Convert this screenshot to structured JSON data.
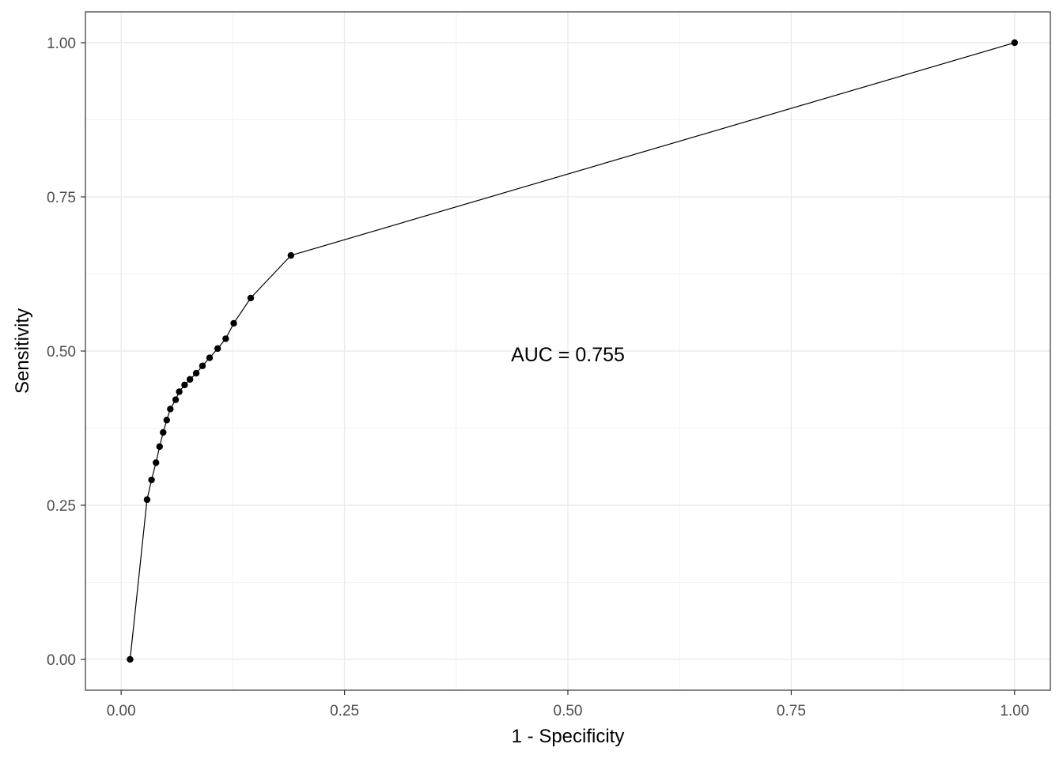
{
  "chart_data": {
    "type": "line",
    "xlabel": "1 - Specificity",
    "ylabel": "Sensitivity",
    "xlim": [
      -0.04,
      1.04
    ],
    "ylim": [
      -0.05,
      1.05
    ],
    "x_ticks": [
      0.0,
      0.25,
      0.5,
      0.75,
      1.0
    ],
    "x_tick_labels": [
      "0.00",
      "0.25",
      "0.50",
      "0.75",
      "1.00"
    ],
    "y_ticks": [
      0.0,
      0.25,
      0.5,
      0.75,
      1.0
    ],
    "y_tick_labels": [
      "0.00",
      "0.25",
      "0.50",
      "0.75",
      "1.00"
    ],
    "grid": true,
    "series": [
      {
        "x": [
          0.01,
          0.029,
          0.034,
          0.039,
          0.043,
          0.047,
          0.051,
          0.055,
          0.061,
          0.065,
          0.071,
          0.077,
          0.084,
          0.091,
          0.099,
          0.108,
          0.117,
          0.126,
          0.145,
          0.19,
          1.0
        ],
        "y": [
          0.0,
          0.259,
          0.291,
          0.319,
          0.345,
          0.368,
          0.388,
          0.406,
          0.421,
          0.434,
          0.445,
          0.454,
          0.464,
          0.476,
          0.489,
          0.504,
          0.52,
          0.545,
          0.586,
          0.655,
          1.0
        ]
      }
    ],
    "annotation": {
      "text": "AUC =  0.755",
      "x": 0.5,
      "y": 0.495
    }
  },
  "colors": {
    "background": "#ffffff",
    "panel_border": "#333333",
    "grid_major": "#ebebeb",
    "grid_minor": "#f2f2f2",
    "line": "#000000",
    "points": "#000000"
  }
}
